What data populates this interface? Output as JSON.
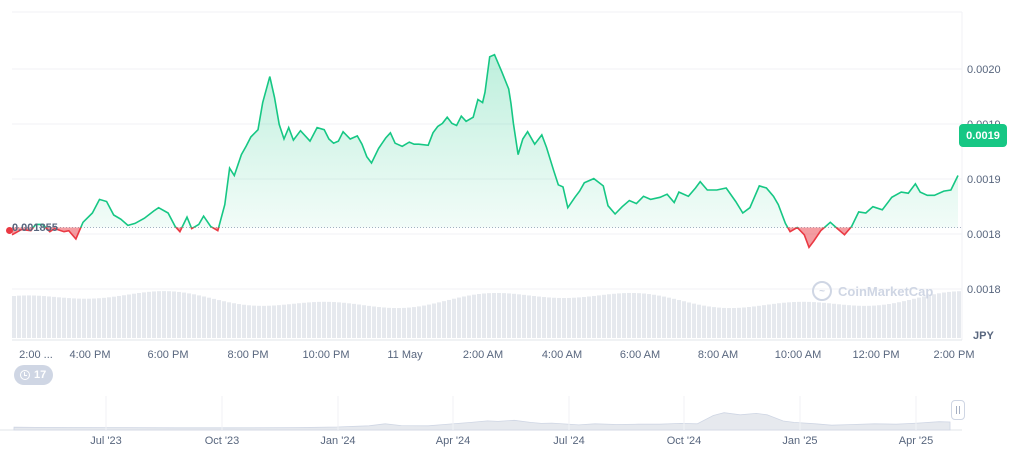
{
  "chart_data": {
    "type": "area",
    "currency": "JPY",
    "current_price": "0.0019",
    "baseline_price": "0.001855",
    "events_count": "17",
    "watermark": "CoinMarketCap",
    "colors": {
      "up": "#16c784",
      "down": "#ea3943",
      "grid": "#f0f2f5",
      "volume": "#e6e9ee",
      "text": "#58667e"
    },
    "y_ticks": [
      "0.0020",
      "0.0019",
      "0.0019",
      "0.0018",
      "0.0018"
    ],
    "x_ticks": [
      "2:00 ...",
      "4:00 PM",
      "6:00 PM",
      "8:00 PM",
      "10:00 PM",
      "11 May",
      "2:00 AM",
      "4:00 AM",
      "6:00 AM",
      "8:00 AM",
      "10:00 AM",
      "12:00 PM",
      "2:00 PM"
    ],
    "nav_ticks": [
      "Jul '23",
      "Oct '23",
      "Jan '24",
      "Apr '24",
      "Jul '24",
      "Oct '24",
      "Jan '25",
      "Apr '25"
    ],
    "series": [
      [
        0.0,
        0.001848
      ],
      [
        0.2,
        0.001853
      ],
      [
        0.4,
        0.001852
      ],
      [
        0.5,
        0.001858
      ],
      [
        0.65,
        0.001858
      ],
      [
        0.8,
        0.001851
      ],
      [
        0.9,
        0.001854
      ],
      [
        1.1,
        0.001851
      ],
      [
        1.2,
        0.001852
      ],
      [
        1.35,
        0.001844
      ],
      [
        1.5,
        0.00186
      ],
      [
        1.7,
        0.001869
      ],
      [
        1.85,
        0.001882
      ],
      [
        2.0,
        0.00188
      ],
      [
        2.15,
        0.001867
      ],
      [
        2.3,
        0.001863
      ],
      [
        2.45,
        0.001857
      ],
      [
        2.6,
        0.001859
      ],
      [
        2.8,
        0.001864
      ],
      [
        3.0,
        0.001871
      ],
      [
        3.1,
        0.001874
      ],
      [
        3.3,
        0.001869
      ],
      [
        3.45,
        0.001856
      ],
      [
        3.55,
        0.001851
      ],
      [
        3.7,
        0.001865
      ],
      [
        3.8,
        0.001854
      ],
      [
        3.95,
        0.001858
      ],
      [
        4.05,
        0.001866
      ],
      [
        4.2,
        0.001856
      ],
      [
        4.35,
        0.001852
      ],
      [
        4.5,
        0.001877
      ],
      [
        4.6,
        0.001912
      ],
      [
        4.7,
        0.001905
      ],
      [
        4.85,
        0.001925
      ],
      [
        4.95,
        0.001933
      ],
      [
        5.05,
        0.001942
      ],
      [
        5.2,
        0.001949
      ],
      [
        5.3,
        0.001975
      ],
      [
        5.45,
        0.002
      ],
      [
        5.55,
        0.00198
      ],
      [
        5.65,
        0.001954
      ],
      [
        5.75,
        0.00194
      ],
      [
        5.85,
        0.001951
      ],
      [
        5.95,
        0.001939
      ],
      [
        6.1,
        0.001948
      ],
      [
        6.3,
        0.001938
      ],
      [
        6.45,
        0.001951
      ],
      [
        6.6,
        0.001949
      ],
      [
        6.7,
        0.00194
      ],
      [
        6.8,
        0.001936
      ],
      [
        6.9,
        0.001938
      ],
      [
        7.0,
        0.001947
      ],
      [
        7.15,
        0.00194
      ],
      [
        7.3,
        0.001943
      ],
      [
        7.4,
        0.001935
      ],
      [
        7.5,
        0.001923
      ],
      [
        7.6,
        0.001917
      ],
      [
        7.75,
        0.001931
      ],
      [
        7.9,
        0.001941
      ],
      [
        8.0,
        0.001946
      ],
      [
        8.1,
        0.001936
      ],
      [
        8.25,
        0.001933
      ],
      [
        8.4,
        0.001937
      ],
      [
        8.5,
        0.001935
      ],
      [
        8.6,
        0.001935
      ],
      [
        8.8,
        0.001934
      ],
      [
        8.9,
        0.001946
      ],
      [
        9.0,
        0.001952
      ],
      [
        9.1,
        0.001955
      ],
      [
        9.2,
        0.001961
      ],
      [
        9.3,
        0.001955
      ],
      [
        9.4,
        0.001953
      ],
      [
        9.5,
        0.001962
      ],
      [
        9.6,
        0.001957
      ],
      [
        9.75,
        0.001961
      ],
      [
        9.85,
        0.001978
      ],
      [
        9.95,
        0.001975
      ],
      [
        10.0,
        0.001985
      ],
      [
        10.1,
        0.002019
      ],
      [
        10.2,
        0.002021
      ],
      [
        10.35,
        0.002005
      ],
      [
        10.5,
        0.001988
      ],
      [
        10.55,
        0.001974
      ],
      [
        10.6,
        0.001955
      ],
      [
        10.7,
        0.001925
      ],
      [
        10.8,
        0.00194
      ],
      [
        10.9,
        0.001947
      ],
      [
        11.05,
        0.001935
      ],
      [
        11.2,
        0.001944
      ],
      [
        11.3,
        0.001932
      ],
      [
        11.45,
        0.00191
      ],
      [
        11.55,
        0.001896
      ],
      [
        11.65,
        0.001894
      ],
      [
        11.75,
        0.001874
      ],
      [
        11.9,
        0.001884
      ],
      [
        12.0,
        0.00189
      ],
      [
        12.1,
        0.001898
      ],
      [
        12.3,
        0.001902
      ],
      [
        12.5,
        0.001895
      ],
      [
        12.6,
        0.001876
      ],
      [
        12.75,
        0.001868
      ],
      [
        12.9,
        0.001875
      ],
      [
        13.05,
        0.001881
      ],
      [
        13.2,
        0.001878
      ],
      [
        13.35,
        0.001885
      ],
      [
        13.5,
        0.001882
      ],
      [
        13.7,
        0.001884
      ],
      [
        13.85,
        0.001887
      ],
      [
        14.0,
        0.001879
      ],
      [
        14.1,
        0.001889
      ],
      [
        14.3,
        0.001885
      ],
      [
        14.45,
        0.001893
      ],
      [
        14.55,
        0.001899
      ],
      [
        14.7,
        0.001891
      ],
      [
        14.9,
        0.001891
      ],
      [
        15.1,
        0.001893
      ],
      [
        15.3,
        0.00188
      ],
      [
        15.45,
        0.001869
      ],
      [
        15.6,
        0.001874
      ],
      [
        15.8,
        0.001895
      ],
      [
        15.95,
        0.001893
      ],
      [
        16.1,
        0.001885
      ],
      [
        16.2,
        0.001877
      ],
      [
        16.35,
        0.001859
      ],
      [
        16.45,
        0.001851
      ],
      [
        16.6,
        0.001855
      ],
      [
        16.75,
        0.001848
      ],
      [
        16.85,
        0.001836
      ],
      [
        16.95,
        0.001842
      ],
      [
        17.1,
        0.001852
      ],
      [
        17.3,
        0.00186
      ],
      [
        17.45,
        0.001854
      ],
      [
        17.6,
        0.001848
      ],
      [
        17.75,
        0.001856
      ],
      [
        17.9,
        0.00187
      ],
      [
        18.05,
        0.001869
      ],
      [
        18.2,
        0.001875
      ],
      [
        18.4,
        0.001872
      ],
      [
        18.6,
        0.001884
      ],
      [
        18.8,
        0.001889
      ],
      [
        18.95,
        0.001888
      ],
      [
        19.1,
        0.001897
      ],
      [
        19.2,
        0.001889
      ],
      [
        19.35,
        0.001886
      ],
      [
        19.5,
        0.001886
      ],
      [
        19.7,
        0.00189
      ],
      [
        19.85,
        0.001891
      ],
      [
        20.0,
        0.001905
      ]
    ],
    "x_range": [
      0,
      20
    ],
    "y_range": [
      0.001795,
      0.002062
    ],
    "navigator": [
      [
        0.0,
        0.2
      ],
      [
        0.2,
        0.19
      ],
      [
        0.5,
        0.18
      ],
      [
        1.0,
        0.17
      ],
      [
        1.5,
        0.16
      ],
      [
        2.0,
        0.16
      ],
      [
        2.6,
        0.17
      ],
      [
        3.0,
        0.22
      ],
      [
        3.3,
        0.3
      ],
      [
        3.45,
        0.45
      ],
      [
        3.6,
        0.32
      ],
      [
        3.85,
        0.3
      ],
      [
        4.0,
        0.4
      ],
      [
        4.25,
        0.55
      ],
      [
        4.4,
        0.66
      ],
      [
        4.5,
        0.62
      ],
      [
        4.65,
        0.7
      ],
      [
        4.8,
        0.55
      ],
      [
        4.9,
        0.48
      ],
      [
        5.0,
        0.5
      ],
      [
        5.25,
        0.37
      ],
      [
        5.4,
        0.45
      ],
      [
        5.6,
        0.4
      ],
      [
        5.8,
        0.42
      ],
      [
        6.0,
        0.42
      ],
      [
        6.2,
        0.48
      ],
      [
        6.35,
        0.45
      ],
      [
        6.5,
        1.05
      ],
      [
        6.6,
        1.25
      ],
      [
        6.75,
        1.1
      ],
      [
        6.9,
        1.2
      ],
      [
        7.0,
        1.1
      ],
      [
        7.15,
        0.65
      ],
      [
        7.25,
        0.55
      ],
      [
        7.45,
        0.45
      ],
      [
        7.6,
        0.35
      ],
      [
        7.8,
        0.4
      ],
      [
        8.0,
        0.45
      ],
      [
        8.2,
        0.42
      ],
      [
        8.4,
        0.5
      ],
      [
        8.6,
        0.6
      ],
      [
        8.7,
        0.58
      ]
    ],
    "nav_range": [
      0,
      8.7
    ]
  }
}
